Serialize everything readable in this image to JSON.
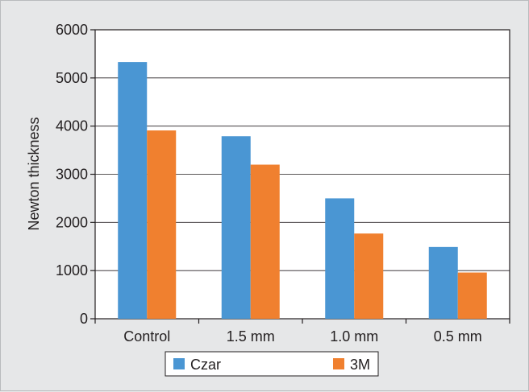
{
  "chart_data": {
    "type": "bar",
    "title": "",
    "xlabel": "",
    "ylabel": "Newton thickness",
    "ylim": [
      0,
      6000
    ],
    "yticks": [
      0,
      1000,
      2000,
      3000,
      4000,
      5000,
      6000
    ],
    "categories": [
      "Control",
      "1.5 mm",
      "1.0 mm",
      "0.5 mm"
    ],
    "series": [
      {
        "name": "Czar",
        "color": "#4a96d3",
        "values": [
          5330,
          3790,
          2500,
          1490
        ]
      },
      {
        "name": "3M",
        "color": "#f0802f",
        "values": [
          3910,
          3200,
          1770,
          960
        ]
      }
    ],
    "grid": true,
    "legend_position": "bottom-center"
  }
}
